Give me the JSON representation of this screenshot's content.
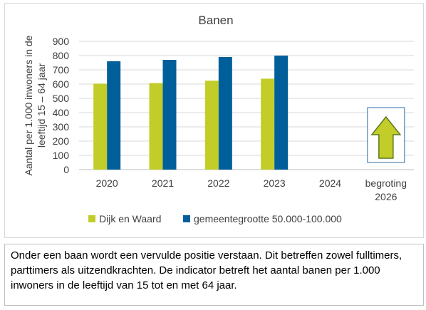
{
  "chart_data": {
    "type": "bar",
    "title": "Banen",
    "ylabel": "Aantal per 1.000 inwoners in de leeftijd 15 – 64 jaar",
    "xlabel": "",
    "ylim": [
      0,
      900
    ],
    "yticks": [
      0,
      100,
      200,
      300,
      400,
      500,
      600,
      700,
      800,
      900
    ],
    "categories": [
      "2020",
      "2021",
      "2022",
      "2023",
      "2024",
      "begroting 2026"
    ],
    "series": [
      {
        "name": "Dijk en Waard",
        "color": "#c3cd29",
        "values": [
          603,
          607,
          624,
          638,
          null,
          null
        ]
      },
      {
        "name": "gemeentegrootte 50.000-100.000",
        "color": "#005f9a",
        "values": [
          760,
          770,
          790,
          800,
          null,
          null
        ]
      }
    ],
    "grid": true,
    "legend_position": "bottom-left",
    "indicator": {
      "icon": "arrow-up-icon",
      "color": "#c3cd29"
    }
  },
  "note": {
    "text": "Onder een baan wordt een vervulde positie verstaan. Dit betreffen zowel fulltimers, parttimers als uitzendkrachten. De indicator betreft het aantal banen per 1.000 inwoners in de leeftijd van 15 tot en met 64 jaar."
  }
}
